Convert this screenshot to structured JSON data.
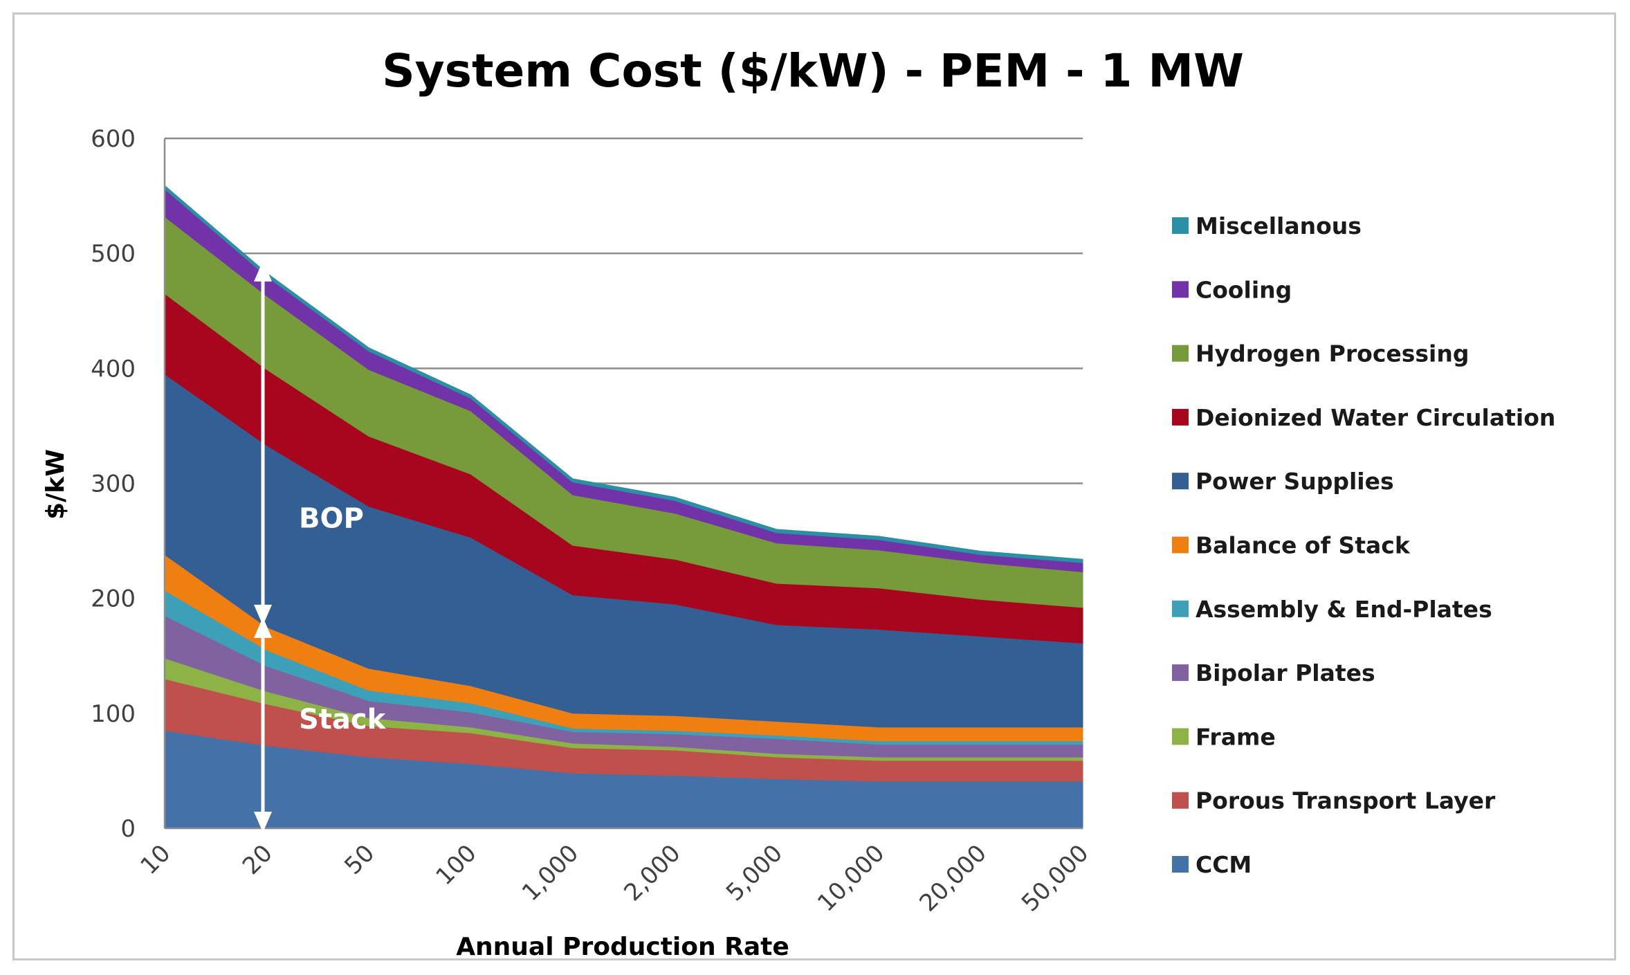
{
  "chart_data": {
    "type": "area",
    "stacked": true,
    "title": "System Cost ($/kW) - PEM - 1 MW",
    "xlabel": "Annual Production Rate",
    "ylabel": "$/kW",
    "ylim": [
      0,
      600
    ],
    "yticks": [
      "0",
      "100",
      "200",
      "300",
      "400",
      "500",
      "600"
    ],
    "grid": true,
    "legend_position": "right",
    "categories": [
      "10",
      "20",
      "50",
      "100",
      "1,000",
      "2,000",
      "5,000",
      "10,000",
      "20,000",
      "50,000"
    ],
    "series": [
      {
        "name": "CCM",
        "color": "#4472a8",
        "values": [
          85,
          72,
          62,
          56,
          48,
          46,
          43,
          41,
          41,
          41
        ]
      },
      {
        "name": "Porous Transport Layer",
        "color": "#c0504d",
        "values": [
          45,
          36,
          27,
          27,
          22,
          22,
          19,
          18,
          18,
          18
        ]
      },
      {
        "name": "Frame",
        "color": "#8db347",
        "values": [
          18,
          11,
          7,
          5,
          4,
          3,
          3,
          3,
          3,
          3
        ]
      },
      {
        "name": "Bipolar Plates",
        "color": "#7f629f",
        "values": [
          37,
          22,
          15,
          13,
          10,
          11,
          13,
          11,
          11,
          11
        ]
      },
      {
        "name": "Assembly & End-Plates",
        "color": "#3ea0b8",
        "values": [
          22,
          14,
          9,
          8,
          3,
          3,
          3,
          3,
          3,
          3
        ]
      },
      {
        "name": "Balance of Stack",
        "color": "#f07f12",
        "values": [
          31,
          20,
          19,
          15,
          13,
          13,
          12,
          12,
          12,
          12
        ]
      },
      {
        "name": "Power Supplies",
        "color": "#345f95",
        "values": [
          157,
          158,
          141,
          129,
          103,
          97,
          84,
          85,
          79,
          73
        ]
      },
      {
        "name": "Deionized Water Circulation",
        "color": "#a8061e",
        "values": [
          70,
          66,
          61,
          55,
          43,
          39,
          36,
          36,
          32,
          31
        ]
      },
      {
        "name": "Hydrogen Processing",
        "color": "#779a3a",
        "values": [
          67,
          64,
          58,
          55,
          44,
          40,
          35,
          33,
          32,
          31
        ]
      },
      {
        "name": "Cooling",
        "color": "#7232a8",
        "values": [
          24,
          17,
          16,
          11,
          11,
          11,
          9,
          9,
          7,
          8
        ]
      },
      {
        "name": "Miscellanous",
        "color": "#2b8fa5",
        "values": [
          3,
          3,
          3,
          3,
          3,
          3,
          3,
          3,
          3,
          3
        ]
      }
    ],
    "annotations": [
      {
        "text": "BOP",
        "from_value": 180,
        "to_value": 490
      },
      {
        "text": "Stack",
        "from_value": 0,
        "to_value": 180
      }
    ]
  }
}
